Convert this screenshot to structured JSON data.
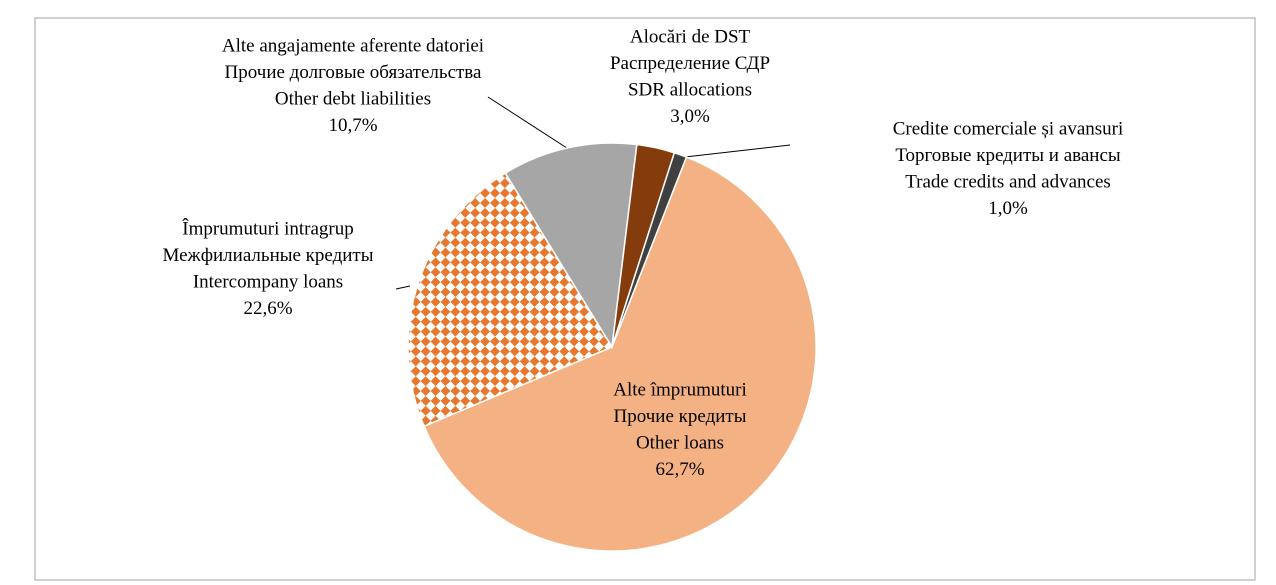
{
  "chart_data": {
    "type": "pie",
    "categories": [
      [
        "Alte împrumuturi",
        "Прочие кредиты",
        "Other loans"
      ],
      [
        "Împrumuturi intragrup",
        "Межфилиальные кредиты",
        "Intercompany loans"
      ],
      [
        "Alte angajamente aferente datoriei",
        "Прочие долговые обязательства",
        "Other debt liabilities"
      ],
      [
        "Alocări de DST",
        "Распределение СДР",
        "SDR allocations"
      ],
      [
        "Credite comerciale și avansuri",
        "Торговые кредиты и авансы",
        "Trade credits and advances"
      ]
    ],
    "values": [
      62.7,
      22.6,
      10.7,
      3.0,
      1.0
    ],
    "value_labels": [
      "62,7%",
      "22,6%",
      "10,7%",
      "3,0%",
      "1,0%"
    ],
    "colors": [
      "#f4b183",
      "#e8772e",
      "#a6a6a6",
      "#843c0c",
      "#404040"
    ],
    "hatch": [
      false,
      true,
      false,
      false,
      false
    ]
  }
}
